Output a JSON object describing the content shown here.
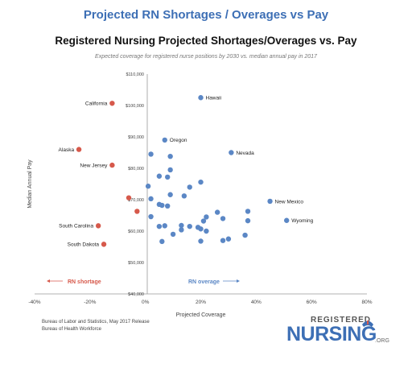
{
  "page": {
    "header_title": "Projected RN Shortages / Overages vs Pay",
    "sources": [
      "Bureau of Labor and Statistics, May 2017 Release",
      "Bureau of Health Workforce"
    ],
    "logo": {
      "top": "REGISTERED",
      "main": "NURSING",
      "org": ".ORG",
      "icon": "nurse-cap-icon"
    },
    "colors": {
      "header": "#3d6fb5",
      "overage_points": "#5b87c5",
      "shortage_points": "#d6594b",
      "axis": "#999999"
    }
  },
  "chart_data": {
    "type": "scatter",
    "title": "Registered Nursing Projected Shortages/Overages vs. Pay",
    "subtitle": "Expected coverage for registered nurse positions by 2030 vs. median annual pay in 2017",
    "xlabel": "Projected Coverage",
    "ylabel": "Median Annual Pay",
    "xlim": [
      -40,
      80
    ],
    "ylim": [
      40000,
      110000
    ],
    "x_ticks": [
      -40,
      -20,
      0,
      20,
      40,
      60,
      80
    ],
    "x_tick_labels": [
      "-40%",
      "-20%",
      "0%",
      "20%",
      "40%",
      "60%",
      "80%"
    ],
    "y_ticks": [
      40000,
      50000,
      60000,
      70000,
      80000,
      90000,
      100000,
      110000
    ],
    "y_tick_labels": [
      "$40,000",
      "$50,000",
      "$60,000",
      "$70,000",
      "$80,000",
      "$90,000",
      "$100,000",
      "$110,000"
    ],
    "grid": false,
    "annotations": {
      "shortage": "RN shortage",
      "overage": "RN overage"
    },
    "series": [
      {
        "color": "#d6594b",
        "points": [
          {
            "x": -12,
            "y": 100700,
            "label": "California"
          },
          {
            "x": -24,
            "y": 86000,
            "label": "Alaska"
          },
          {
            "x": -12,
            "y": 81000,
            "label": "New Jersey"
          },
          {
            "x": -6,
            "y": 70600
          },
          {
            "x": -3,
            "y": 66300
          },
          {
            "x": -17,
            "y": 61700,
            "label": "South Carolina"
          },
          {
            "x": -15,
            "y": 55800,
            "label": "South Dakota"
          }
        ]
      },
      {
        "color": "#5b87c5",
        "points": [
          {
            "x": 20,
            "y": 102500,
            "label": "Hawaii"
          },
          {
            "x": 7,
            "y": 89000,
            "label": "Oregon"
          },
          {
            "x": 31,
            "y": 85000,
            "label": "Nevada"
          },
          {
            "x": 45,
            "y": 69500,
            "label": "New Mexico"
          },
          {
            "x": 51,
            "y": 63400,
            "label": "Wyoming"
          },
          {
            "x": 2,
            "y": 84500
          },
          {
            "x": 9,
            "y": 83800
          },
          {
            "x": 9,
            "y": 79500
          },
          {
            "x": 5,
            "y": 77500
          },
          {
            "x": 8,
            "y": 77200
          },
          {
            "x": 20,
            "y": 75600
          },
          {
            "x": 1,
            "y": 74300
          },
          {
            "x": 16,
            "y": 74000
          },
          {
            "x": 9,
            "y": 71600
          },
          {
            "x": 14,
            "y": 71200
          },
          {
            "x": 2,
            "y": 70300
          },
          {
            "x": 5,
            "y": 68500
          },
          {
            "x": 6,
            "y": 68200
          },
          {
            "x": 8,
            "y": 68000
          },
          {
            "x": 26,
            "y": 66000
          },
          {
            "x": 37,
            "y": 66300
          },
          {
            "x": 2,
            "y": 64600
          },
          {
            "x": 22,
            "y": 64500
          },
          {
            "x": 28,
            "y": 64000
          },
          {
            "x": 21,
            "y": 63200
          },
          {
            "x": 37,
            "y": 63300
          },
          {
            "x": 5,
            "y": 61500
          },
          {
            "x": 7,
            "y": 61700
          },
          {
            "x": 13,
            "y": 61800
          },
          {
            "x": 16,
            "y": 61500
          },
          {
            "x": 19,
            "y": 61200
          },
          {
            "x": 20,
            "y": 60700
          },
          {
            "x": 13,
            "y": 60400
          },
          {
            "x": 22,
            "y": 60000
          },
          {
            "x": 10,
            "y": 59000
          },
          {
            "x": 36,
            "y": 58700
          },
          {
            "x": 30,
            "y": 57500
          },
          {
            "x": 28,
            "y": 57000
          },
          {
            "x": 6,
            "y": 56700
          },
          {
            "x": 20,
            "y": 56800
          }
        ]
      }
    ]
  }
}
